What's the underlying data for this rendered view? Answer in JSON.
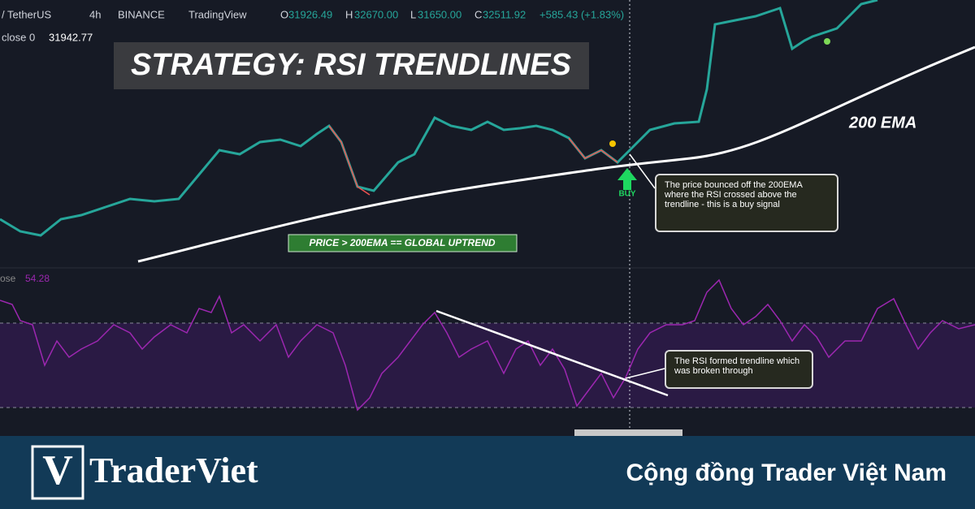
{
  "header": {
    "symbol": "/ TetherUS",
    "interval": "4h",
    "exchange": "BINANCE",
    "platform": "TradingView",
    "ohlc": [
      {
        "key": "O",
        "value": "31926.49"
      },
      {
        "key": "H",
        "value": "32670.00"
      },
      {
        "key": "L",
        "value": "31650.00"
      },
      {
        "key": "C",
        "value": "32511.92"
      }
    ],
    "change": "+585.43 (+1.83%)",
    "indicator": "close 0",
    "indicator_value": "31942.77"
  },
  "title": "STRATEGY: RSI TRENDLINES",
  "ema_label": "200 EMA",
  "buy_label": "BUY",
  "price_note": "The price bounced off the 200EMA where the RSI crossed above the trendline - this is a buy signal",
  "uptrend_label": "PRICE > 200EMA == GLOBAL UPTREND",
  "rsi": {
    "label": "ose",
    "value": "54.28",
    "note": "The RSI formed trendline which was broken through"
  },
  "footer": {
    "logo": "V",
    "brand": "TraderViet",
    "tagline": "Cộng đồng Trader Việt Nam"
  }
}
